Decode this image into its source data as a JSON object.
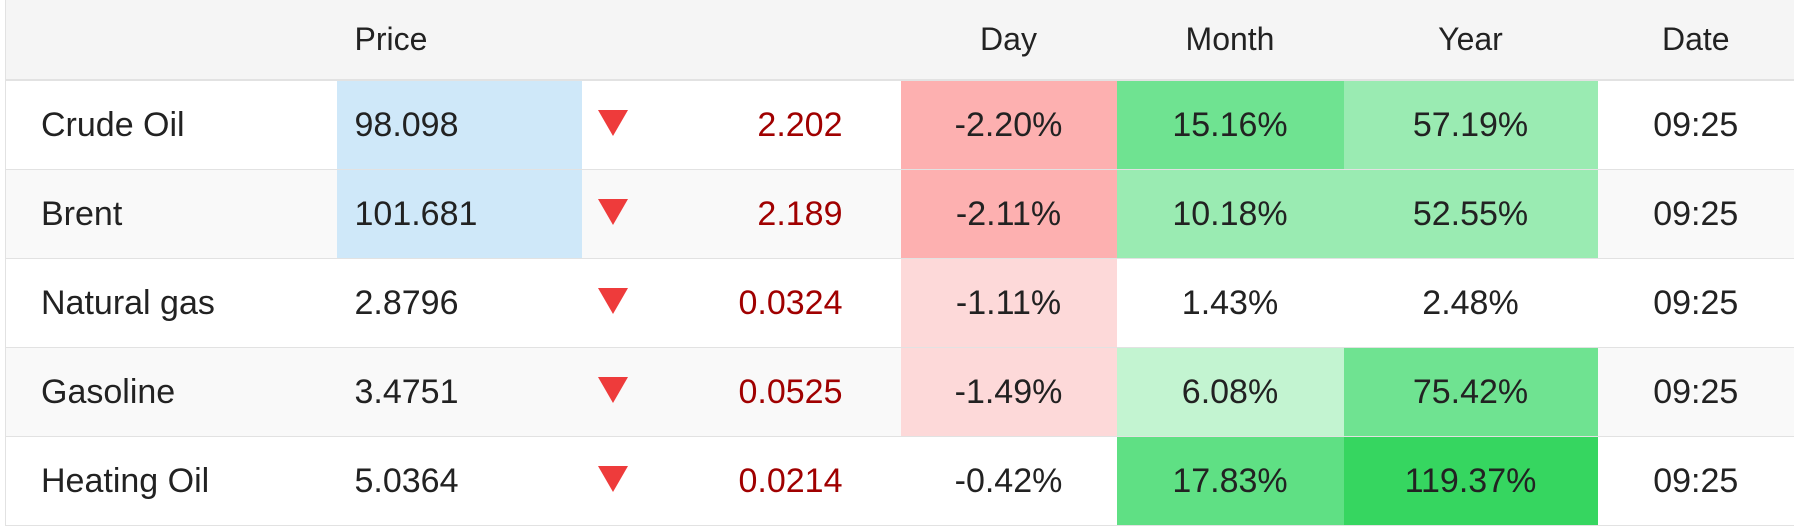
{
  "header": {
    "price": "Price",
    "day": "Day",
    "month": "Month",
    "year": "Year",
    "date": "Date"
  },
  "rows": [
    [
      "Crude Oil",
      "98.098",
      "2.202",
      "-2.20%",
      "15.16%",
      "57.19%",
      "09:25"
    ],
    [
      "Brent",
      "101.681",
      "2.189",
      "-2.11%",
      "10.18%",
      "52.55%",
      "09:25"
    ],
    [
      "Natural gas",
      "2.8796",
      "0.0324",
      "-1.11%",
      "1.43%",
      "2.48%",
      "09:25"
    ],
    [
      "Gasoline",
      "3.4751",
      "0.0525",
      "-1.49%",
      "6.08%",
      "75.42%",
      "09:25"
    ],
    [
      "Heating Oil",
      "5.0364",
      "0.0214",
      "-0.42%",
      "17.83%",
      "119.37%",
      "09:25"
    ]
  ]
}
